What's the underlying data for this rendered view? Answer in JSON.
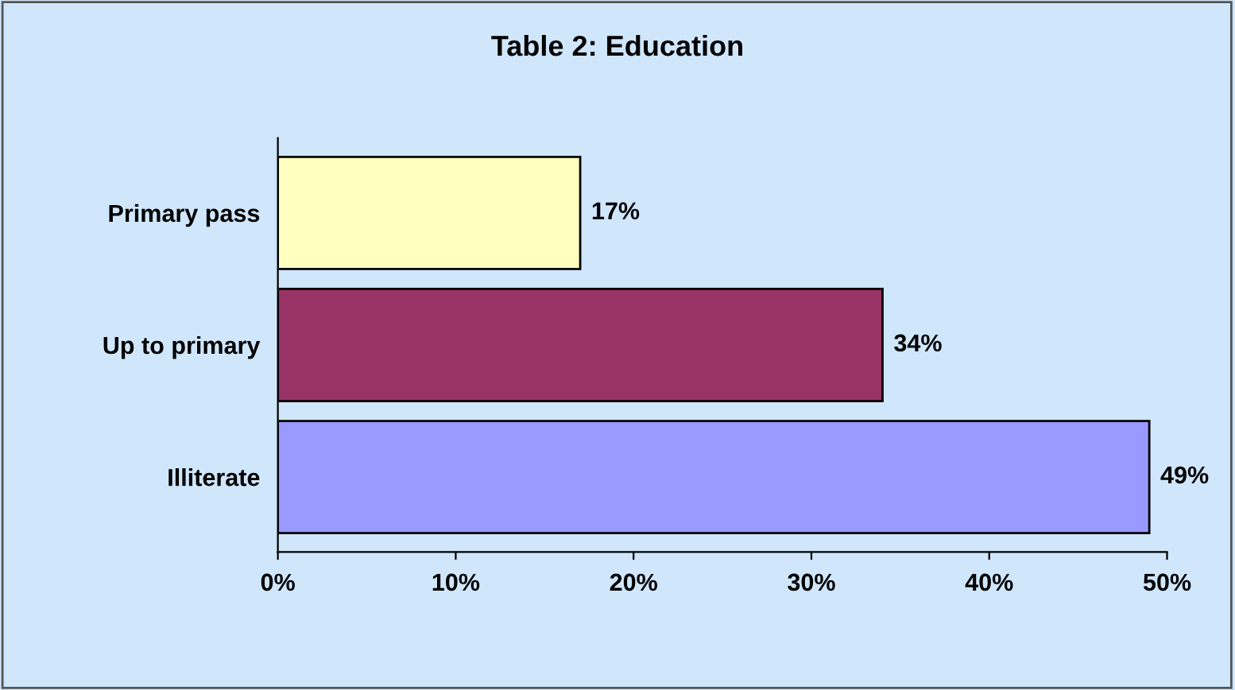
{
  "chart_data": {
    "type": "bar",
    "orientation": "horizontal",
    "title": "Table 2: Education",
    "categories": [
      "Primary pass",
      "Up to primary",
      "Illiterate"
    ],
    "values": [
      17,
      34,
      49
    ],
    "colors": [
      "#ffffc0",
      "#993366",
      "#9999ff"
    ],
    "value_labels": [
      "17%",
      "34%",
      "49%"
    ],
    "xlim": [
      0,
      50
    ],
    "xticks": [
      {
        "value": 0,
        "label": "0%"
      },
      {
        "value": 10,
        "label": "10%"
      },
      {
        "value": 20,
        "label": "20%"
      },
      {
        "value": 30,
        "label": "30%"
      },
      {
        "value": 40,
        "label": "40%"
      },
      {
        "value": 50,
        "label": "50%"
      }
    ],
    "grid": false,
    "legend": false
  }
}
